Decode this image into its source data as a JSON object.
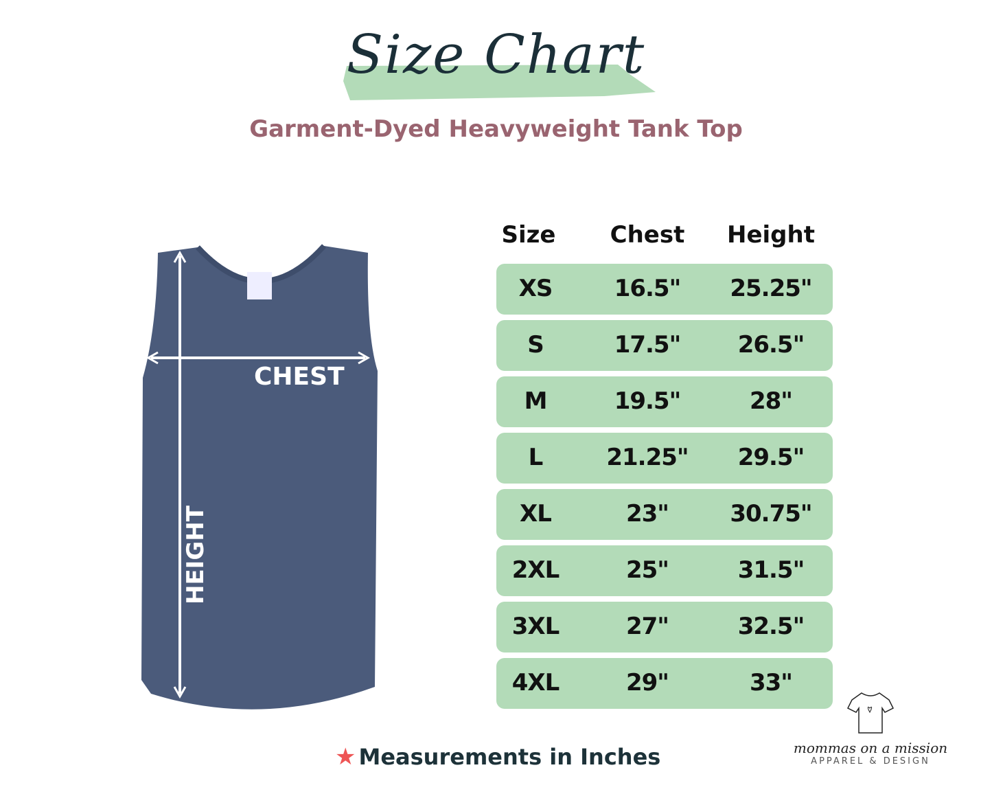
{
  "title": "Size Chart",
  "subtitle": "Garment-Dyed Heavyweight Tank Top",
  "colors": {
    "brush": "#b3dbb8",
    "title": "#1b2f38",
    "subtitle": "#9a6470",
    "row": "#b3dbb8",
    "garment": "#4b5b7b",
    "star": "#ee5555"
  },
  "garment": {
    "chest_label": "CHEST",
    "height_label": "HEIGHT"
  },
  "table": {
    "headers": [
      "Size",
      "Chest",
      "Height"
    ],
    "rows": [
      [
        "XS",
        "16.5\"",
        "25.25\""
      ],
      [
        "S",
        "17.5\"",
        "26.5\""
      ],
      [
        "M",
        "19.5\"",
        "28\""
      ],
      [
        "L",
        "21.25\"",
        "29.5\""
      ],
      [
        "XL",
        "23\"",
        "30.75\""
      ],
      [
        "2XL",
        "25\"",
        "31.5\""
      ],
      [
        "3XL",
        "27\"",
        "32.5\""
      ],
      [
        "4XL",
        "29\"",
        "33\""
      ]
    ]
  },
  "note": {
    "icon": "star-icon",
    "text": "Measurements in Inches"
  },
  "logo": {
    "name": "mommas on a mission",
    "tagline": "APPAREL & DESIGN"
  }
}
